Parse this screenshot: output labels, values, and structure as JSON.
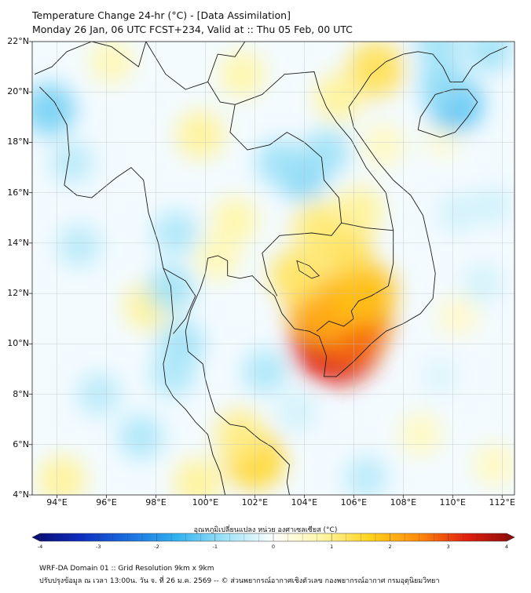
{
  "header": {
    "title_line1": "Temperature Change 24-hr (°C) - [Data Assimilation]",
    "title_line2": "Monday 26 Jan, 06 UTC FCST+234, Valid at :: Thu 05 Feb, 00 UTC"
  },
  "map": {
    "lat_labels": [
      "22°N",
      "20°N",
      "18°N",
      "16°N",
      "14°N",
      "12°N",
      "10°N",
      "8°N",
      "6°N",
      "4°N"
    ],
    "lon_labels": [
      "94°E",
      "96°E",
      "98°E",
      "100°E",
      "102°E",
      "104°E",
      "106°E",
      "108°E",
      "110°E",
      "112°E"
    ],
    "lat_range": [
      4,
      22
    ],
    "lon_range": [
      93,
      112.5
    ],
    "anomalies": [
      {
        "lon": 105.3,
        "lat": 10.2,
        "value": 3.2
      },
      {
        "lon": 105.9,
        "lat": 10.9,
        "value": 2.6
      },
      {
        "lon": 104.7,
        "lat": 11.4,
        "value": 2.0
      },
      {
        "lon": 106.4,
        "lat": 12.0,
        "value": 1.8
      },
      {
        "lon": 103.7,
        "lat": 12.7,
        "value": 1.2
      },
      {
        "lon": 105.6,
        "lat": 13.9,
        "value": 1.3
      },
      {
        "lon": 104.6,
        "lat": 14.6,
        "value": 1.1
      },
      {
        "lon": 106.2,
        "lat": 15.3,
        "value": 0.9
      },
      {
        "lon": 106.9,
        "lat": 20.9,
        "value": 1.3
      },
      {
        "lon": 105.4,
        "lat": 19.8,
        "value": 0.9
      },
      {
        "lon": 101.5,
        "lat": 20.7,
        "value": 0.8
      },
      {
        "lon": 99.8,
        "lat": 18.3,
        "value": 0.9
      },
      {
        "lon": 96.2,
        "lat": 21.2,
        "value": 0.7
      },
      {
        "lon": 101.2,
        "lat": 14.9,
        "value": 0.8
      },
      {
        "lon": 100.5,
        "lat": 13.4,
        "value": 0.7
      },
      {
        "lon": 97.7,
        "lat": 11.5,
        "value": 0.9
      },
      {
        "lon": 102.0,
        "lat": 5.4,
        "value": 1.5
      },
      {
        "lon": 101.4,
        "lat": 6.4,
        "value": 1.0
      },
      {
        "lon": 99.7,
        "lat": 4.5,
        "value": 0.9
      },
      {
        "lon": 94.2,
        "lat": 4.6,
        "value": 0.9
      },
      {
        "lon": 108.7,
        "lat": 6.4,
        "value": 0.6
      },
      {
        "lon": 111.7,
        "lat": 5.2,
        "value": 0.6
      },
      {
        "lon": 110.2,
        "lat": 11.1,
        "value": 0.5
      },
      {
        "lon": 107.2,
        "lat": 17.9,
        "value": 0.6
      },
      {
        "lon": 109.6,
        "lat": 18.1,
        "value": 0.4
      },
      {
        "lon": 110.1,
        "lat": 19.5,
        "value": -1.3
      },
      {
        "lon": 109.6,
        "lat": 20.3,
        "value": -0.9
      },
      {
        "lon": 111.5,
        "lat": 21.7,
        "value": -0.8
      },
      {
        "lon": 109.4,
        "lat": 21.9,
        "value": -0.8
      },
      {
        "lon": 103.9,
        "lat": 16.7,
        "value": -1.0
      },
      {
        "lon": 103.0,
        "lat": 17.2,
        "value": -0.8
      },
      {
        "lon": 104.9,
        "lat": 17.6,
        "value": -0.8
      },
      {
        "lon": 93.7,
        "lat": 19.3,
        "value": -1.1
      },
      {
        "lon": 94.6,
        "lat": 17.2,
        "value": -0.6
      },
      {
        "lon": 94.9,
        "lat": 13.9,
        "value": -0.6
      },
      {
        "lon": 98.6,
        "lat": 12.2,
        "value": -0.8
      },
      {
        "lon": 98.8,
        "lat": 14.4,
        "value": -0.7
      },
      {
        "lon": 99.0,
        "lat": 10.0,
        "value": -0.8
      },
      {
        "lon": 98.7,
        "lat": 8.8,
        "value": -0.7
      },
      {
        "lon": 95.7,
        "lat": 8.0,
        "value": -0.6
      },
      {
        "lon": 102.4,
        "lat": 8.9,
        "value": -0.7
      },
      {
        "lon": 103.7,
        "lat": 7.3,
        "value": -0.4
      },
      {
        "lon": 97.4,
        "lat": 6.3,
        "value": -0.7
      },
      {
        "lon": 106.5,
        "lat": 4.7,
        "value": -0.6
      },
      {
        "lon": 109.5,
        "lat": 8.7,
        "value": -0.3
      },
      {
        "lon": 111.2,
        "lat": 12.4,
        "value": -0.4
      },
      {
        "lon": 111.6,
        "lat": 15.5,
        "value": -0.4
      },
      {
        "lon": 110.2,
        "lat": 15.2,
        "value": -0.4
      }
    ]
  },
  "colorbar": {
    "title": "อุณหภูมิเปลี่ยนแปลง หน่วย องศาเซลเซียส (°C)",
    "ticks": [
      "-4",
      "-3",
      "-2",
      "-1",
      "0",
      "1",
      "2",
      "3",
      "4"
    ],
    "range": [
      -4,
      4
    ],
    "colors": [
      "#0a0a6e",
      "#0d2dbf",
      "#1b6fe0",
      "#31b2f0",
      "#9fe2f7",
      "#ffffff",
      "#fff6a8",
      "#ffd21c",
      "#ff8c0d",
      "#e0200f",
      "#8b0a0a"
    ]
  },
  "footer": {
    "line1": "WRF-DA Domain 01 :: Grid Resolution 9km x 9km",
    "line2": "ปรับปรุงข้อมูล ณ เวลา 13:00น. วัน จ. ที่ 26 ม.ค. 2569 -- © ส่วนพยากรณ์อากาศเชิงตัวเลข กองพยากรณ์อากาศ กรมอุตุนิยมวิทยา"
  }
}
